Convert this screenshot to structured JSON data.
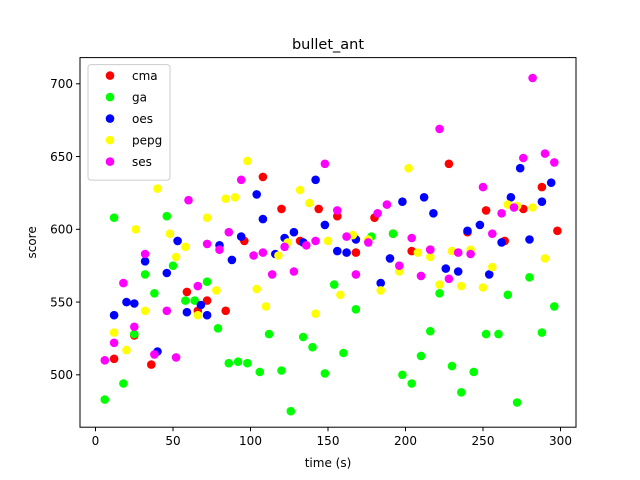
{
  "chart_data": {
    "type": "scatter",
    "title": "bullet_ant",
    "xlabel": "time (s)",
    "ylabel": "score",
    "xlim": [
      -10,
      310
    ],
    "ylim": [
      464,
      718
    ],
    "xticks": [
      0,
      50,
      100,
      150,
      200,
      250,
      300
    ],
    "yticks": [
      500,
      550,
      600,
      650,
      700
    ],
    "grid": false,
    "legend_position": "top-left",
    "series": [
      {
        "name": "cma",
        "color": "#ff0000",
        "points": [
          [
            12,
            511
          ],
          [
            25,
            527
          ],
          [
            36,
            507
          ],
          [
            59,
            557
          ],
          [
            66,
            544
          ],
          [
            72,
            551
          ],
          [
            84,
            544
          ],
          [
            96,
            592
          ],
          [
            108,
            636
          ],
          [
            120,
            614
          ],
          [
            132,
            592
          ],
          [
            144,
            614
          ],
          [
            156,
            609
          ],
          [
            168,
            584
          ],
          [
            180,
            608
          ],
          [
            192,
            597
          ],
          [
            204,
            585
          ],
          [
            216,
            586
          ],
          [
            228,
            645
          ],
          [
            240,
            598
          ],
          [
            252,
            613
          ],
          [
            264,
            592
          ],
          [
            276,
            614
          ],
          [
            288,
            629
          ],
          [
            298,
            599
          ]
        ]
      },
      {
        "name": "ga",
        "color": "#00ff00",
        "points": [
          [
            6,
            483
          ],
          [
            12,
            608
          ],
          [
            18,
            494
          ],
          [
            25,
            528
          ],
          [
            32,
            569
          ],
          [
            38,
            556
          ],
          [
            46,
            609
          ],
          [
            50,
            575
          ],
          [
            58,
            551
          ],
          [
            64,
            551
          ],
          [
            72,
            564
          ],
          [
            79,
            532
          ],
          [
            86,
            508
          ],
          [
            92,
            509
          ],
          [
            98,
            508
          ],
          [
            106,
            502
          ],
          [
            112,
            528
          ],
          [
            120,
            503
          ],
          [
            126,
            475
          ],
          [
            134,
            526
          ],
          [
            140,
            519
          ],
          [
            148,
            501
          ],
          [
            154,
            562
          ],
          [
            160,
            515
          ],
          [
            168,
            545
          ],
          [
            178,
            595
          ],
          [
            192,
            597
          ],
          [
            198,
            500
          ],
          [
            204,
            494
          ],
          [
            210,
            513
          ],
          [
            216,
            530
          ],
          [
            222,
            556
          ],
          [
            230,
            506
          ],
          [
            236,
            488
          ],
          [
            244,
            502
          ],
          [
            252,
            528
          ],
          [
            260,
            528
          ],
          [
            266,
            555
          ],
          [
            272,
            481
          ],
          [
            280,
            567
          ],
          [
            288,
            529
          ],
          [
            296,
            547
          ]
        ]
      },
      {
        "name": "oes",
        "color": "#0000ff",
        "points": [
          [
            12,
            541
          ],
          [
            20,
            550
          ],
          [
            25,
            549
          ],
          [
            32,
            578
          ],
          [
            40,
            516
          ],
          [
            46,
            570
          ],
          [
            53,
            592
          ],
          [
            59,
            543
          ],
          [
            68,
            548
          ],
          [
            72,
            541
          ],
          [
            80,
            589
          ],
          [
            88,
            579
          ],
          [
            94,
            595
          ],
          [
            104,
            624
          ],
          [
            108,
            607
          ],
          [
            116,
            583
          ],
          [
            122,
            594
          ],
          [
            128,
            598
          ],
          [
            134,
            591
          ],
          [
            142,
            634
          ],
          [
            148,
            603
          ],
          [
            156,
            585
          ],
          [
            162,
            584
          ],
          [
            168,
            593
          ],
          [
            184,
            563
          ],
          [
            190,
            580
          ],
          [
            198,
            619
          ],
          [
            212,
            622
          ],
          [
            218,
            611
          ],
          [
            226,
            573
          ],
          [
            234,
            571
          ],
          [
            240,
            599
          ],
          [
            248,
            603
          ],
          [
            254,
            569
          ],
          [
            262,
            591
          ],
          [
            268,
            622
          ],
          [
            274,
            642
          ],
          [
            280,
            593
          ],
          [
            288,
            619
          ],
          [
            294,
            632
          ]
        ]
      },
      {
        "name": "pepg",
        "color": "#ffff00",
        "points": [
          [
            12,
            529
          ],
          [
            20,
            517
          ],
          [
            26,
            600
          ],
          [
            32,
            544
          ],
          [
            40,
            628
          ],
          [
            48,
            597
          ],
          [
            52,
            581
          ],
          [
            58,
            588
          ],
          [
            66,
            541
          ],
          [
            72,
            608
          ],
          [
            78,
            558
          ],
          [
            84,
            621
          ],
          [
            90,
            622
          ],
          [
            98,
            647
          ],
          [
            104,
            559
          ],
          [
            110,
            547
          ],
          [
            118,
            582
          ],
          [
            124,
            591
          ],
          [
            132,
            627
          ],
          [
            138,
            618
          ],
          [
            142,
            542
          ],
          [
            150,
            592
          ],
          [
            158,
            555
          ],
          [
            166,
            596
          ],
          [
            176,
            593
          ],
          [
            184,
            558
          ],
          [
            196,
            571
          ],
          [
            202,
            642
          ],
          [
            208,
            584
          ],
          [
            216,
            581
          ],
          [
            222,
            562
          ],
          [
            230,
            585
          ],
          [
            236,
            561
          ],
          [
            242,
            586
          ],
          [
            250,
            560
          ],
          [
            256,
            574
          ],
          [
            266,
            617
          ],
          [
            272,
            616
          ],
          [
            282,
            615
          ],
          [
            290,
            580
          ]
        ]
      },
      {
        "name": "ses",
        "color": "#ff00ff",
        "points": [
          [
            6,
            510
          ],
          [
            12,
            522
          ],
          [
            18,
            563
          ],
          [
            25,
            533
          ],
          [
            32,
            583
          ],
          [
            38,
            514
          ],
          [
            46,
            544
          ],
          [
            52,
            512
          ],
          [
            60,
            620
          ],
          [
            66,
            561
          ],
          [
            72,
            590
          ],
          [
            80,
            586
          ],
          [
            86,
            598
          ],
          [
            94,
            634
          ],
          [
            102,
            582
          ],
          [
            108,
            584
          ],
          [
            114,
            569
          ],
          [
            122,
            588
          ],
          [
            128,
            571
          ],
          [
            136,
            589
          ],
          [
            142,
            592
          ],
          [
            148,
            645
          ],
          [
            156,
            613
          ],
          [
            162,
            595
          ],
          [
            168,
            569
          ],
          [
            176,
            591
          ],
          [
            182,
            611
          ],
          [
            188,
            617
          ],
          [
            196,
            575
          ],
          [
            204,
            594
          ],
          [
            210,
            568
          ],
          [
            216,
            586
          ],
          [
            222,
            669
          ],
          [
            228,
            566
          ],
          [
            234,
            584
          ],
          [
            242,
            583
          ],
          [
            250,
            629
          ],
          [
            256,
            597
          ],
          [
            262,
            611
          ],
          [
            270,
            615
          ],
          [
            276,
            649
          ],
          [
            282,
            704
          ],
          [
            290,
            652
          ],
          [
            296,
            646
          ]
        ]
      }
    ]
  }
}
